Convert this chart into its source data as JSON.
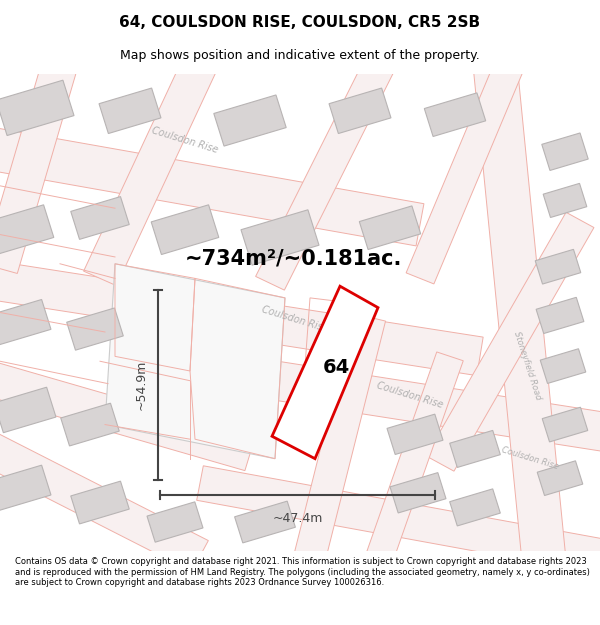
{
  "title": "64, COULSDON RISE, COULSDON, CR5 2SB",
  "subtitle": "Map shows position and indicative extent of the property.",
  "footer": "Contains OS data © Crown copyright and database right 2021. This information is subject to Crown copyright and database rights 2023 and is reproduced with the permission of HM Land Registry. The polygons (including the associated geometry, namely x, y co-ordinates) are subject to Crown copyright and database rights 2023 Ordnance Survey 100026316.",
  "area_text": "~734m²/~0.181ac.",
  "width_label": "~47.4m",
  "height_label": "~54.9m",
  "plot_number": "64",
  "map_bg": "#ffffff",
  "road_line_color": "#f0b0a8",
  "road_fill_color": "#f8f0f0",
  "building_color": "#d8d4d4",
  "building_outline": "#b8b4b4",
  "plot_color": "#dd0000",
  "dim_color": "#444444",
  "road_label_color": "#b0b0b0",
  "title_fontsize": 11,
  "subtitle_fontsize": 9,
  "area_fontsize": 15,
  "dim_fontsize": 9,
  "plot_label_fontsize": 14,
  "road_label_fontsize": 7,
  "road_label_fontsize_small": 6
}
